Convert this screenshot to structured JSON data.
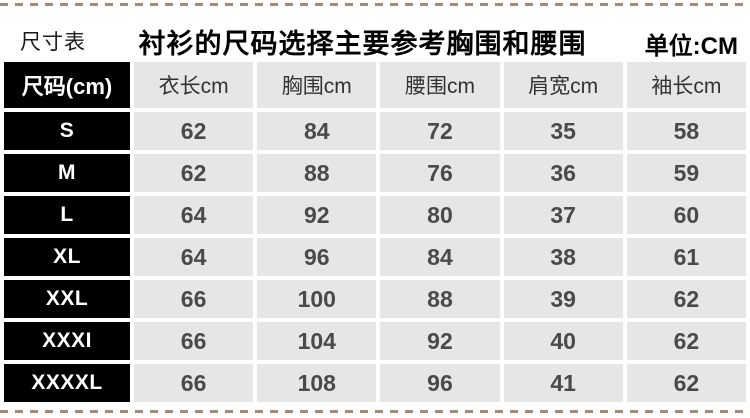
{
  "header": {
    "left_label": "尺寸表",
    "title": "衬衫的尺码选择主要参考胸围和腰围",
    "unit_label": "单位:CM"
  },
  "colors": {
    "dashed_divider": "#a38b77",
    "size_column_bg": "#000000",
    "size_column_text": "#ffffff",
    "cell_bg": "#e6e6e6",
    "cell_text": "#4a4a4a",
    "page_bg": "#ffffff"
  },
  "chart_data": {
    "type": "table",
    "title": "衬衫的尺码选择主要参考胸围和腰围",
    "unit": "单位:CM",
    "columns": [
      "尺码(cm)",
      "衣长cm",
      "胸围cm",
      "腰围cm",
      "肩宽cm",
      "袖长cm"
    ],
    "rows": [
      [
        "S",
        62,
        84,
        72,
        35,
        58
      ],
      [
        "M",
        62,
        88,
        76,
        36,
        59
      ],
      [
        "L",
        64,
        92,
        80,
        37,
        60
      ],
      [
        "XL",
        64,
        96,
        84,
        38,
        61
      ],
      [
        "XXL",
        66,
        100,
        88,
        39,
        62
      ],
      [
        "XXXI",
        66,
        104,
        92,
        40,
        62
      ],
      [
        "XXXXL",
        66,
        108,
        96,
        41,
        62
      ]
    ]
  }
}
